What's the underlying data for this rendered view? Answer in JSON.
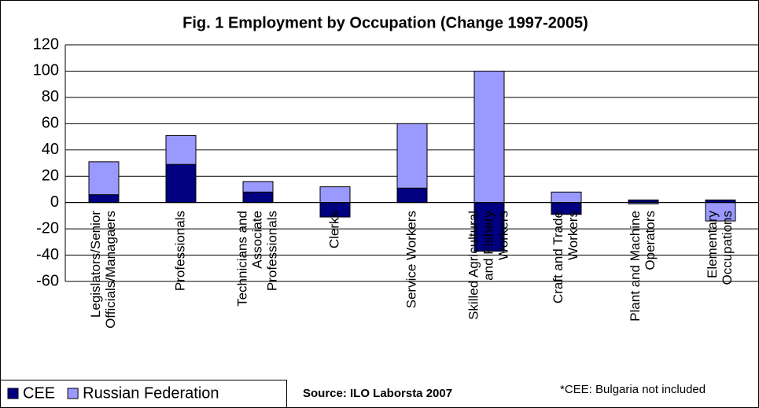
{
  "chart_data": {
    "type": "stacked_bar",
    "title": "Fig. 1 Employment by Occupation (Change 1997-2005)",
    "categories": [
      [
        "Legislators/Senior",
        "Officials/Managaers"
      ],
      [
        "Professionals"
      ],
      [
        "Technicians and",
        "Associate",
        "Professionals"
      ],
      [
        "Clerks"
      ],
      [
        "Service Workers"
      ],
      [
        "Skilled Agricultural",
        "and Fishery",
        "Workers"
      ],
      [
        "Craft and Trade",
        "Workers"
      ],
      [
        "Plant and Machine",
        "Operators"
      ],
      [
        "Elementary",
        "Occupations"
      ]
    ],
    "series": [
      {
        "name": "CEE",
        "color": "#000080",
        "values": [
          6,
          29,
          8,
          -11,
          11,
          -37,
          -9,
          2,
          2
        ]
      },
      {
        "name": "Russian Federation",
        "color": "#9999ff",
        "values": [
          25,
          22,
          8,
          12,
          49,
          100,
          8,
          -1,
          -14
        ]
      }
    ],
    "ylim": [
      -60,
      120
    ],
    "yticks": [
      -60,
      -40,
      -20,
      0,
      20,
      40,
      60,
      80,
      100,
      120
    ],
    "grid": true,
    "legend": "bottom-left",
    "source": "Source: ILO Laborsta 2007",
    "note": "*CEE: Bulgaria not included"
  }
}
